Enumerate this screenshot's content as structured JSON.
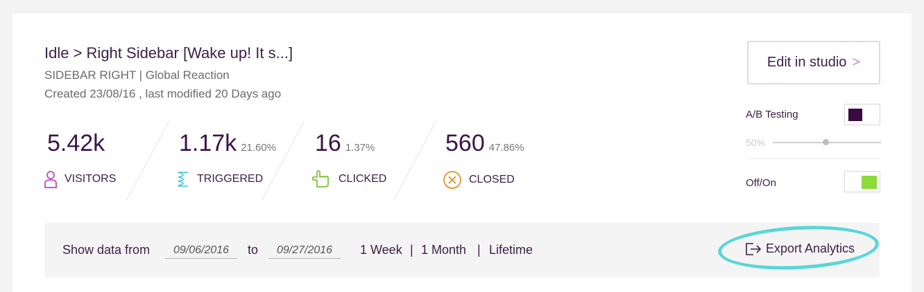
{
  "header": {
    "title": "Idle > Right Sidebar [Wake up! It s...]",
    "subtitle": "SIDEBAR RIGHT | Global Reaction",
    "created": "Created 23/08/16 , last modified 20 Days ago"
  },
  "stats": [
    {
      "value": "5.42k",
      "percent": "",
      "label": "VISITORS",
      "icon": "person-icon",
      "color": "#c45cc4"
    },
    {
      "value": "1.17k",
      "percent": "21.60%",
      "label": "TRIGGERED",
      "icon": "spring-icon",
      "color": "#3cc4d8"
    },
    {
      "value": "16",
      "percent": "1.37%",
      "label": "CLICKED",
      "icon": "hand-pointer-icon",
      "color": "#7cc43a"
    },
    {
      "value": "560",
      "percent": "47.86%",
      "label": "CLOSED",
      "icon": "close-circle-icon",
      "color": "#e89a3a"
    }
  ],
  "controls": {
    "edit_label": "Edit in studio",
    "edit_chevron": ">",
    "ab_label": "A/B Testing",
    "ab_split": "50%",
    "ab_split_value": 0.5,
    "onoff_label": "Off/On",
    "onoff_state": "on",
    "accent_off": "#3a0b40",
    "accent_on": "#8bdc3a"
  },
  "filter": {
    "show_label": "Show data from",
    "from_date": "09/06/2016",
    "to_label": "to",
    "to_date": "09/27/2016",
    "ranges": [
      "1 Week",
      "1 Month",
      "Lifetime"
    ],
    "range_sep": "|",
    "export_label": "Export Analytics"
  }
}
